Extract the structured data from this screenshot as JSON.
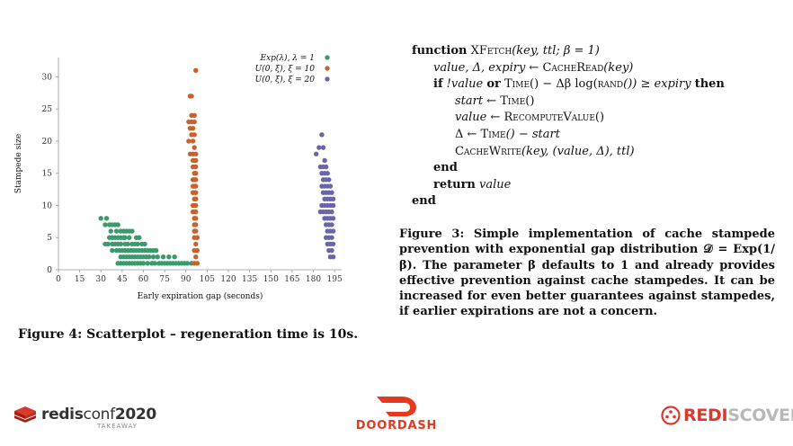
{
  "chart_data": {
    "type": "scatter",
    "xlabel": "Early expiration gap (seconds)",
    "ylabel": "Stampede size",
    "xlim": [
      0,
      200
    ],
    "ylim": [
      0,
      33
    ],
    "xticks": [
      0,
      15,
      30,
      45,
      60,
      75,
      90,
      105,
      120,
      135,
      150,
      165,
      180,
      195
    ],
    "yticks": [
      0,
      5,
      10,
      15,
      20,
      25,
      30
    ],
    "grid": false,
    "legend_position": "top-right",
    "series": [
      {
        "name": "Exp(λ), λ = 1",
        "color": "#3b9a6b",
        "points": [
          [
            30,
            8
          ],
          [
            33,
            7
          ],
          [
            34,
            8
          ],
          [
            36,
            7
          ],
          [
            38,
            7
          ],
          [
            37,
            6
          ],
          [
            40,
            7
          ],
          [
            42,
            7
          ],
          [
            41,
            6
          ],
          [
            44,
            6
          ],
          [
            46,
            6
          ],
          [
            48,
            6
          ],
          [
            50,
            6
          ],
          [
            52,
            6
          ],
          [
            47,
            5
          ],
          [
            36,
            5
          ],
          [
            38,
            5
          ],
          [
            40,
            5
          ],
          [
            42,
            5
          ],
          [
            44,
            5
          ],
          [
            46,
            5
          ],
          [
            50,
            5
          ],
          [
            55,
            5
          ],
          [
            57,
            5
          ],
          [
            33,
            4
          ],
          [
            35,
            4
          ],
          [
            38,
            4
          ],
          [
            40,
            4
          ],
          [
            42,
            4
          ],
          [
            44,
            4
          ],
          [
            47,
            4
          ],
          [
            49,
            4
          ],
          [
            52,
            4
          ],
          [
            54,
            4
          ],
          [
            56,
            4
          ],
          [
            59,
            4
          ],
          [
            61,
            4
          ],
          [
            38,
            3
          ],
          [
            41,
            3
          ],
          [
            43,
            3
          ],
          [
            45,
            3
          ],
          [
            47,
            3
          ],
          [
            49,
            3
          ],
          [
            51,
            3
          ],
          [
            53,
            3
          ],
          [
            55,
            3
          ],
          [
            57,
            3
          ],
          [
            59,
            3
          ],
          [
            61,
            3
          ],
          [
            63,
            3
          ],
          [
            65,
            3
          ],
          [
            67,
            3
          ],
          [
            69,
            3
          ],
          [
            44,
            2
          ],
          [
            46,
            2
          ],
          [
            48,
            2
          ],
          [
            50,
            2
          ],
          [
            52,
            2
          ],
          [
            54,
            2
          ],
          [
            56,
            2
          ],
          [
            58,
            2
          ],
          [
            60,
            2
          ],
          [
            62,
            2
          ],
          [
            64,
            2
          ],
          [
            67,
            2
          ],
          [
            70,
            2
          ],
          [
            74,
            2
          ],
          [
            78,
            2
          ],
          [
            82,
            2
          ],
          [
            42,
            1
          ],
          [
            44,
            1
          ],
          [
            46,
            1
          ],
          [
            48,
            1
          ],
          [
            50,
            1
          ],
          [
            52,
            1
          ],
          [
            54,
            1
          ],
          [
            56,
            1
          ],
          [
            58,
            1
          ],
          [
            60,
            1
          ],
          [
            63,
            1
          ],
          [
            66,
            1
          ],
          [
            68,
            1
          ],
          [
            71,
            1
          ],
          [
            73,
            1
          ],
          [
            75,
            1
          ],
          [
            77,
            1
          ],
          [
            79,
            1
          ],
          [
            81,
            1
          ],
          [
            83,
            1
          ],
          [
            85,
            1
          ],
          [
            87,
            1
          ],
          [
            89,
            1
          ],
          [
            91,
            1
          ],
          [
            94,
            1
          ]
        ]
      },
      {
        "name": "U(0, ξ), ξ = 10",
        "color": "#c9612a",
        "points": [
          [
            97,
            31
          ],
          [
            93,
            27
          ],
          [
            94,
            27
          ],
          [
            94,
            24
          ],
          [
            96,
            24
          ],
          [
            92,
            23
          ],
          [
            94,
            23
          ],
          [
            96,
            23
          ],
          [
            93,
            22
          ],
          [
            95,
            22
          ],
          [
            94,
            21
          ],
          [
            96,
            21
          ],
          [
            95,
            20
          ],
          [
            92,
            20
          ],
          [
            96,
            19
          ],
          [
            93,
            18
          ],
          [
            95,
            18
          ],
          [
            97,
            18
          ],
          [
            95,
            17
          ],
          [
            96,
            17
          ],
          [
            97,
            17
          ],
          [
            95,
            16
          ],
          [
            96,
            16
          ],
          [
            97,
            16
          ],
          [
            96,
            15
          ],
          [
            97,
            15
          ],
          [
            95,
            14
          ],
          [
            96,
            14
          ],
          [
            97,
            14
          ],
          [
            95,
            13
          ],
          [
            96,
            13
          ],
          [
            97,
            13
          ],
          [
            95,
            12
          ],
          [
            96,
            12
          ],
          [
            97,
            12
          ],
          [
            96,
            11
          ],
          [
            97,
            11
          ],
          [
            95,
            10
          ],
          [
            96,
            10
          ],
          [
            97,
            10
          ],
          [
            95,
            9
          ],
          [
            96,
            9
          ],
          [
            97,
            9
          ],
          [
            96,
            8
          ],
          [
            97,
            8
          ],
          [
            96,
            7
          ],
          [
            97,
            7
          ],
          [
            96,
            6
          ],
          [
            97,
            6
          ],
          [
            96,
            5
          ],
          [
            98,
            5
          ],
          [
            97,
            4
          ],
          [
            96,
            3
          ],
          [
            98,
            3
          ],
          [
            97,
            2
          ],
          [
            96,
            1
          ],
          [
            98,
            1
          ]
        ]
      },
      {
        "name": "U(0, ξ), ξ = 20",
        "color": "#6a64a8",
        "points": [
          [
            186,
            21
          ],
          [
            184,
            19
          ],
          [
            187,
            19
          ],
          [
            182,
            18
          ],
          [
            188,
            17
          ],
          [
            185,
            16
          ],
          [
            187,
            16
          ],
          [
            189,
            16
          ],
          [
            186,
            15
          ],
          [
            188,
            15
          ],
          [
            190,
            15
          ],
          [
            187,
            14
          ],
          [
            189,
            14
          ],
          [
            191,
            14
          ],
          [
            186,
            13
          ],
          [
            188,
            13
          ],
          [
            190,
            13
          ],
          [
            192,
            13
          ],
          [
            187,
            12
          ],
          [
            189,
            12
          ],
          [
            191,
            12
          ],
          [
            193,
            12
          ],
          [
            188,
            11
          ],
          [
            190,
            11
          ],
          [
            192,
            11
          ],
          [
            194,
            11
          ],
          [
            186,
            10
          ],
          [
            188,
            10
          ],
          [
            190,
            10
          ],
          [
            192,
            10
          ],
          [
            194,
            10
          ],
          [
            185,
            9
          ],
          [
            187,
            9
          ],
          [
            189,
            9
          ],
          [
            191,
            9
          ],
          [
            193,
            9
          ],
          [
            188,
            8
          ],
          [
            190,
            8
          ],
          [
            192,
            8
          ],
          [
            194,
            8
          ],
          [
            189,
            7
          ],
          [
            191,
            7
          ],
          [
            193,
            7
          ],
          [
            190,
            6
          ],
          [
            192,
            6
          ],
          [
            194,
            6
          ],
          [
            189,
            5
          ],
          [
            191,
            5
          ],
          [
            193,
            5
          ],
          [
            190,
            4
          ],
          [
            192,
            4
          ],
          [
            194,
            4
          ],
          [
            191,
            3
          ],
          [
            193,
            3
          ],
          [
            192,
            2
          ],
          [
            194,
            2
          ]
        ]
      }
    ]
  },
  "figure4_caption": "Figure 4: Scatterplot – regeneration time is 10s.",
  "algorithm": {
    "l1_kw": "function",
    "l1_name": "XFetch",
    "l1_args": "(key, ttl; β = 1)",
    "l2": "value, Δ, expiry ← ",
    "l2_call": "CacheRead",
    "l2_arg": "(key)",
    "l3_if": "if",
    "l3_a": " !value ",
    "l3_or": "or",
    "l3_time": "Time",
    "l3_b": "() − Δβ log(",
    "l3_rand": "rand",
    "l3_c": "()) ≥ expiry ",
    "l3_then": "then",
    "l4": "start ← ",
    "l4_call": "Time",
    "l4_end": "()",
    "l5": "value ← ",
    "l5_call": "RecomputeValue",
    "l5_end": "()",
    "l6": "Δ ← ",
    "l6_call": "Time",
    "l6_end": "() − start",
    "l7_call": "CacheWrite",
    "l7_args": "(key, (value, Δ), ttl)",
    "l8": "end",
    "l9_kw": "return",
    "l9_val": " value",
    "l10": "end"
  },
  "figure3_caption": "Figure 3: Simple implementation of cache stampede prevention with exponential gap distribution 𝒟 = Exp(1/β). The parameter β defaults to 1 and already provides effective prevention against cache stampedes. It can be increased for even better guarantees against stampedes, if earlier expirations are not a concern.",
  "footer": {
    "redisconf_a": "redis",
    "redisconf_b": "conf",
    "redisconf_year": "2020",
    "redisconf_sub": "TAKEAWAY",
    "doordash": "DOORDASH",
    "rediscover_a": "REDI",
    "rediscover_b": "SCOVER"
  }
}
